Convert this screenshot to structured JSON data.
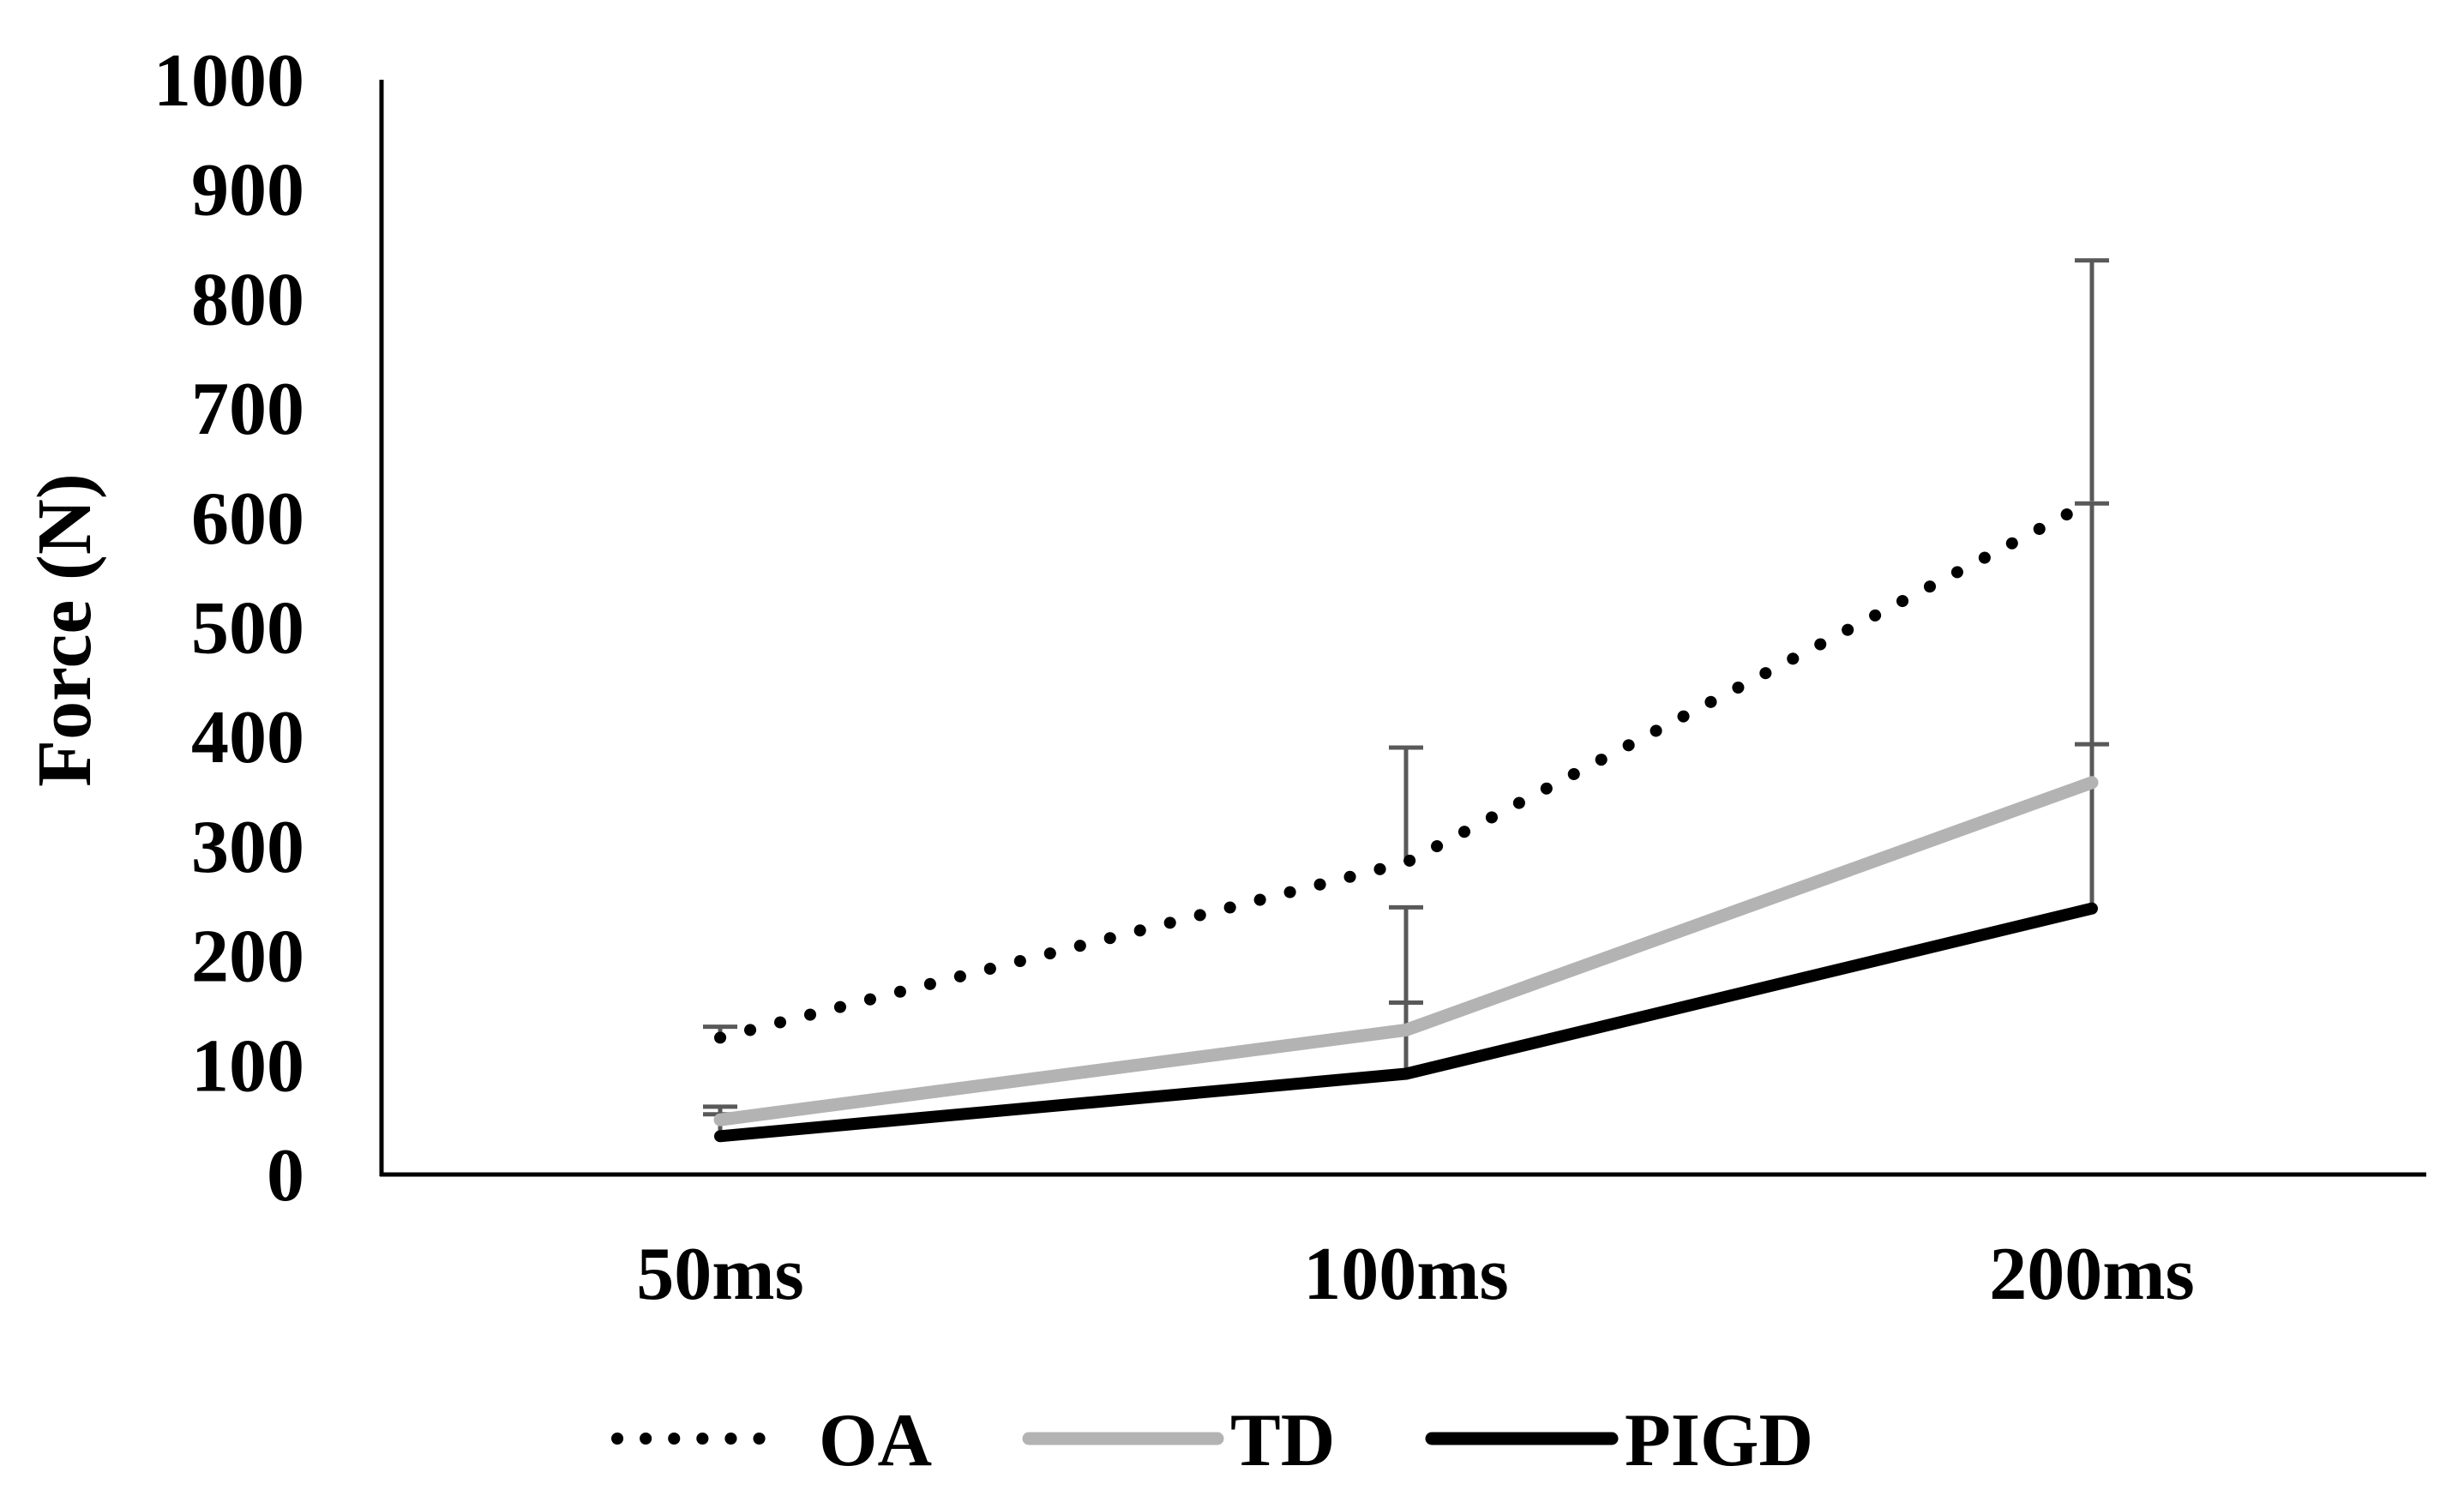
{
  "chart_data": {
    "type": "line",
    "title": "",
    "xlabel": "",
    "ylabel": "Force (N)",
    "ylim": [
      0,
      1000
    ],
    "yticks": [
      0,
      100,
      200,
      300,
      400,
      500,
      600,
      700,
      800,
      900,
      1000
    ],
    "ytick_labels": [
      "0",
      "100",
      "200",
      "300",
      "400",
      "500",
      "600",
      "700",
      "800",
      "900",
      "1000"
    ],
    "categories": [
      "50ms",
      "100ms",
      "200ms"
    ],
    "grid": false,
    "legend_position": "bottom",
    "series": [
      {
        "name": "OA",
        "style": "dotted",
        "color": "#000000",
        "values": [
          125,
          285,
          615
        ],
        "error_plus": [
          10,
          105,
          220
        ]
      },
      {
        "name": "TD",
        "style": "solid",
        "color": "#b3b3b3",
        "values": [
          50,
          132,
          358
        ],
        "error_plus": [
          12,
          112,
          255
        ]
      },
      {
        "name": "PIGD",
        "style": "solid",
        "color": "#000000",
        "values": [
          35,
          92,
          243
        ],
        "error_plus": [
          20,
          65,
          150
        ]
      }
    ],
    "error_bar_color": "#595959"
  }
}
